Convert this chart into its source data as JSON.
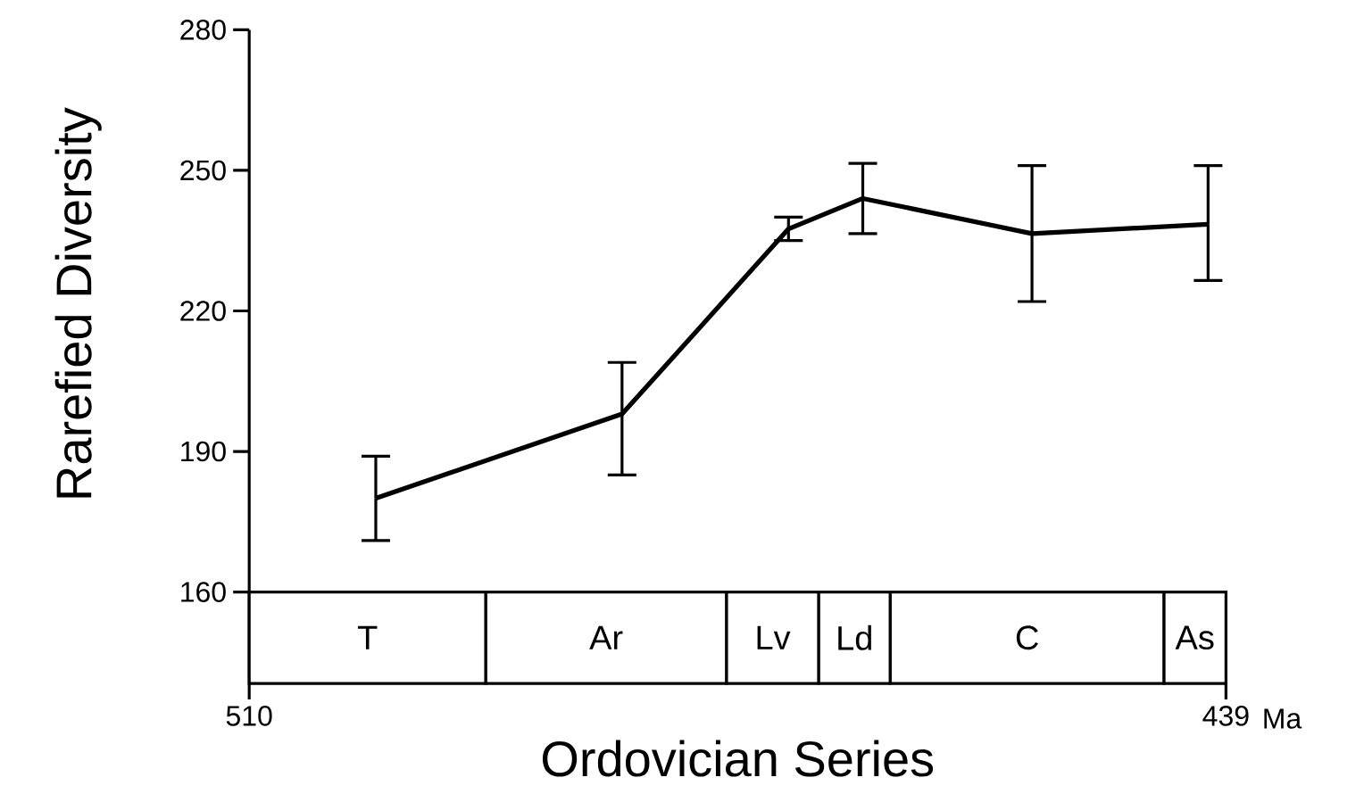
{
  "chart_data": {
    "type": "line",
    "xlabel": "Ordovician Series",
    "ylabel": "Rarefied Diversity",
    "x": [
      500.8,
      482.9,
      470.8,
      465.4,
      453.1,
      440.3
    ],
    "series": [
      {
        "color": "#000000",
        "values": [
          180,
          198,
          237.5,
          244,
          236.5,
          238.5
        ],
        "errors": [
          [
            171,
            189
          ],
          [
            185,
            209
          ],
          [
            235,
            240
          ],
          [
            236.5,
            251.5
          ],
          [
            222,
            251
          ],
          [
            226.5,
            251
          ]
        ]
      }
    ],
    "xlim": [
      510,
      439
    ],
    "ylim": [
      140.5,
      280
    ],
    "xticks": [
      510,
      439
    ],
    "yticks": [
      160,
      190,
      220,
      250,
      280
    ],
    "marker": "none",
    "line_style": "solid",
    "grid": false,
    "bands": [
      {
        "axis": "x",
        "from": 510,
        "to": 492.8,
        "label": "T"
      },
      {
        "axis": "x",
        "from": 492.8,
        "to": 475.3,
        "label": "Ar"
      },
      {
        "axis": "x",
        "from": 475.3,
        "to": 468.6,
        "label": "Lv"
      },
      {
        "axis": "x",
        "from": 468.6,
        "to": 463.4,
        "label": "Ld"
      },
      {
        "axis": "x",
        "from": 463.4,
        "to": 443.5,
        "label": "C"
      },
      {
        "axis": "x",
        "from": 443.5,
        "to": 439,
        "label": "As"
      }
    ],
    "annotations": [
      "Ma"
    ]
  }
}
